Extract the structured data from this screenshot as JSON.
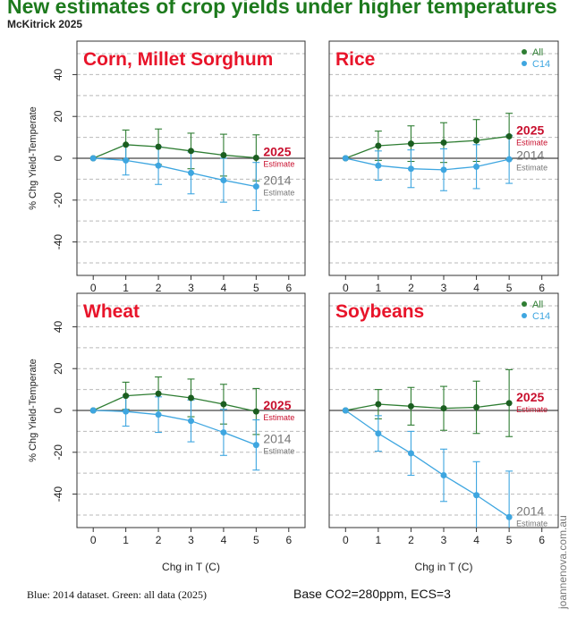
{
  "title": "New estimates of crop yields under higher temperatures",
  "subtitle": "McKitrick 2025",
  "footer_left": "Blue: 2014 dataset.  Green: all data (2025)",
  "footer_right": "Base CO2=280ppm, ECS=3",
  "watermark": "joannenova.com.au",
  "colors": {
    "green": "#2e7d32",
    "green_dark": "#1b5e20",
    "blue": "#3ea6e0",
    "title_green": "#1d7a1d",
    "panel_title_red": "#e8142a",
    "label_2025_red": "#c8102e",
    "label_2014_grey": "#777777"
  },
  "chart_data": [
    {
      "type": "line",
      "title": "Corn, Millet Sorghum",
      "xlabel": "",
      "ylabel": "% Chg Yield-Temperate",
      "x": [
        0,
        1,
        2,
        3,
        4,
        5
      ],
      "xlim": [
        -0.5,
        6.5
      ],
      "ylim": [
        -56,
        56
      ],
      "xticks": [
        "0",
        "1",
        "2",
        "3",
        "4",
        "5",
        "6"
      ],
      "yticks": [
        "-40",
        "-20",
        "0",
        "20",
        "40"
      ],
      "legend": [],
      "series": [
        {
          "name": "All (2025)",
          "color": "green",
          "values": [
            0,
            6.5,
            5.5,
            3.5,
            1.5,
            0.2
          ],
          "err": [
            0,
            7,
            8.5,
            8.5,
            10,
            11
          ]
        },
        {
          "name": "C14 (2014)",
          "color": "blue",
          "values": [
            0,
            -1,
            -3.5,
            -7,
            -10.5,
            -13.5
          ],
          "err": [
            0,
            7,
            9,
            10,
            10.5,
            11.5
          ]
        }
      ],
      "annotations": [
        {
          "text": "2025",
          "sub": "Estimate",
          "style": "2025"
        },
        {
          "text": "2014",
          "sub": "Estimate",
          "style": "2014"
        }
      ]
    },
    {
      "type": "line",
      "title": "Rice",
      "xlabel": "",
      "ylabel": "",
      "x": [
        0,
        1,
        2,
        3,
        4,
        5
      ],
      "xlim": [
        -0.5,
        6.5
      ],
      "ylim": [
        -56,
        56
      ],
      "xticks": [
        "0",
        "1",
        "2",
        "3",
        "4",
        "5",
        "6"
      ],
      "yticks": [],
      "legend": [
        "All",
        "C14"
      ],
      "series": [
        {
          "name": "All (2025)",
          "color": "green",
          "values": [
            0,
            6,
            7,
            7.5,
            8.5,
            10.5
          ],
          "err": [
            0,
            7,
            8.5,
            9.5,
            10,
            11
          ]
        },
        {
          "name": "C14 (2014)",
          "color": "blue",
          "values": [
            0,
            -3.5,
            -5,
            -5.5,
            -4,
            -0.5
          ],
          "err": [
            0,
            7,
            9,
            10,
            10.5,
            11.5
          ]
        }
      ],
      "annotations": [
        {
          "text": "2025",
          "sub": "Estimate",
          "style": "2025"
        },
        {
          "text": "2014",
          "sub": "Estimate",
          "style": "2014"
        }
      ]
    },
    {
      "type": "line",
      "title": "Wheat",
      "xlabel": "Chg in T (C)",
      "ylabel": "% Chg Yield-Temperate",
      "x": [
        0,
        1,
        2,
        3,
        4,
        5
      ],
      "xlim": [
        -0.5,
        6.5
      ],
      "ylim": [
        -56,
        56
      ],
      "xticks": [
        "0",
        "1",
        "2",
        "3",
        "4",
        "5",
        "6"
      ],
      "yticks": [
        "-40",
        "-20",
        "0",
        "20",
        "40"
      ],
      "legend": [],
      "series": [
        {
          "name": "All (2025)",
          "color": "green",
          "values": [
            0,
            7,
            8,
            6,
            3,
            -0.5
          ],
          "err": [
            0,
            6.5,
            8,
            9,
            9.5,
            11
          ]
        },
        {
          "name": "C14 (2014)",
          "color": "blue",
          "values": [
            0,
            -0.5,
            -2,
            -5,
            -10.5,
            -16.5
          ],
          "err": [
            0,
            7,
            8.5,
            10,
            11,
            12
          ]
        }
      ],
      "annotations": [
        {
          "text": "2025",
          "sub": "Estimate",
          "style": "2025"
        },
        {
          "text": "2014",
          "sub": "Estimate",
          "style": "2014"
        }
      ]
    },
    {
      "type": "line",
      "title": "Soybeans",
      "xlabel": "Chg in T (C)",
      "ylabel": "",
      "x": [
        0,
        1,
        2,
        3,
        4,
        5
      ],
      "xlim": [
        -0.5,
        6.5
      ],
      "ylim": [
        -56,
        56
      ],
      "xticks": [
        "0",
        "1",
        "2",
        "3",
        "4",
        "5",
        "6"
      ],
      "yticks": [],
      "legend": [
        "All",
        "C14"
      ],
      "series": [
        {
          "name": "All (2025)",
          "color": "green",
          "values": [
            0,
            3,
            2,
            1,
            1.5,
            3.5
          ],
          "err": [
            0,
            7,
            9,
            10.5,
            12.5,
            16
          ]
        },
        {
          "name": "C14 (2014)",
          "color": "blue",
          "values": [
            0,
            -11,
            -20.5,
            -31,
            -40.5,
            -51
          ],
          "err": [
            0,
            8.5,
            10.5,
            12.5,
            16,
            22
          ]
        }
      ],
      "annotations": [
        {
          "text": "2025",
          "sub": "Estimate",
          "style": "2025"
        },
        {
          "text": "2014",
          "sub": "Estimate",
          "style": "2014"
        }
      ]
    }
  ]
}
